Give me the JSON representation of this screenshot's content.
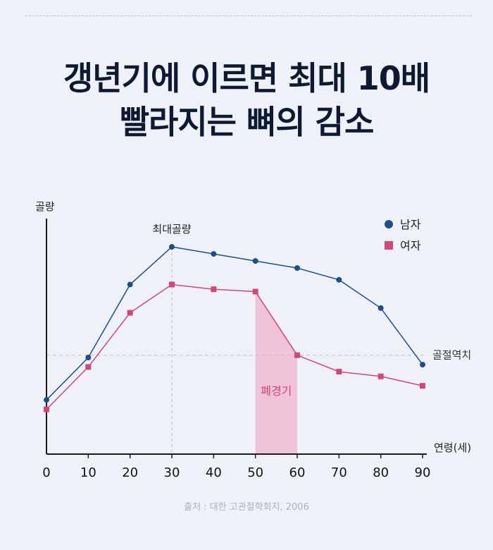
{
  "header": {
    "title_line1": "갱년기에 이르면 최대 10배",
    "title_line2": "빨라지는 뼈의 감소"
  },
  "source": "출처 : 대한 고관절학회지, 2006",
  "colors": {
    "male": "#1d4e89",
    "female": "#d4457a",
    "menopause_fill": "#f0bcd2",
    "axis": "#1c1c1c",
    "guide": "#b9c0cc"
  },
  "chart_data": {
    "type": "line",
    "ylabel": "골량",
    "xlabel": "연령(세)",
    "x": [
      0,
      10,
      20,
      30,
      40,
      50,
      60,
      70,
      80,
      90
    ],
    "xlim": [
      0,
      90
    ],
    "ylim": [
      0,
      100
    ],
    "y_ticks_shown": false,
    "series": [
      {
        "name": "남자",
        "marker": "circle",
        "color": "#1d4e89",
        "values": [
          23,
          41,
          72,
          88,
          85,
          82,
          79,
          74,
          62,
          38
        ]
      },
      {
        "name": "여자",
        "marker": "square",
        "color": "#d4457a",
        "values": [
          19,
          37,
          60,
          72,
          70,
          69,
          42,
          35,
          33,
          29
        ]
      }
    ],
    "legend_position": "top-right",
    "reference_line": {
      "label": "골절역치",
      "y": 42
    },
    "annotations": [
      {
        "text": "최대골량",
        "x": 30
      },
      {
        "text": "폐경기",
        "x_start": 50,
        "x_end": 60
      }
    ]
  }
}
